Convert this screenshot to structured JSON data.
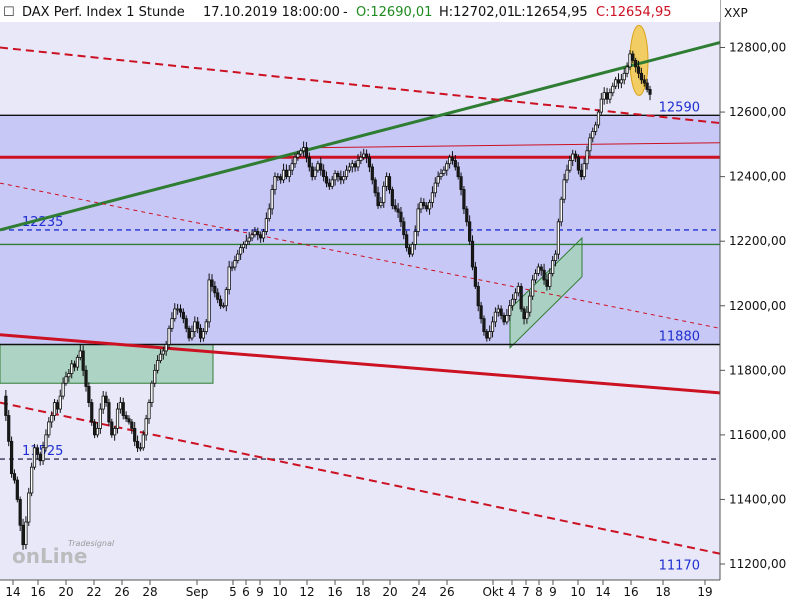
{
  "header": {
    "checkbox_glyph": "☐",
    "title": "DAX Perf. Index 1 Stunde",
    "datetime": "17.10.2019 18:00:00",
    "dash": "-",
    "open": "O:12690,01",
    "high": "H:12702,01",
    "low": "L:12654,95",
    "close": "C:12654,95"
  },
  "axis_unit": "XXP",
  "watermark": {
    "line1": "Tradesignal",
    "line2": "onLine"
  },
  "colors": {
    "background": "#e8e8f9",
    "band_fill": "#c8c8f6",
    "candle_up": "#ffffff",
    "candle_down": "#1a1a1a",
    "trend_green": "#2e7d32",
    "trend_red": "#cc1122",
    "blue_label": "#1f2fd1",
    "highlight": "#f4c430"
  },
  "chart_data": {
    "type": "candlestick",
    "title": "DAX Perf. Index 1 Stunde",
    "interval": "1h",
    "ylim": [
      11160,
      12920
    ],
    "x_ticks": [
      "14",
      "16",
      "20",
      "22",
      "26",
      "28",
      "Sep",
      "5",
      "6",
      "9",
      "10",
      "12",
      "16",
      "18",
      "20",
      "24",
      "26",
      "Okt",
      "4",
      "7",
      "8",
      "9",
      "10",
      "14",
      "16",
      "18",
      "19"
    ],
    "y_ticks": [
      "11200,00",
      "11400,00",
      "11600,00",
      "11800,00",
      "12000,00",
      "12200,00",
      "12400,00",
      "12600,00",
      "12800,00"
    ],
    "y_tick_values": [
      11200,
      11400,
      11600,
      11800,
      12000,
      12200,
      12400,
      12600,
      12800
    ],
    "close_path": [
      [
        1,
        11720
      ],
      [
        3,
        11660
      ],
      [
        4,
        11580
      ],
      [
        5,
        11480
      ],
      [
        6,
        11460
      ],
      [
        7,
        11400
      ],
      [
        8,
        11320
      ],
      [
        9,
        11260
      ],
      [
        10,
        11330
      ],
      [
        11,
        11420
      ],
      [
        12,
        11500
      ],
      [
        13,
        11560
      ],
      [
        14,
        11540
      ],
      [
        15,
        11520
      ],
      [
        16,
        11560
      ],
      [
        17,
        11600
      ],
      [
        18,
        11640
      ],
      [
        19,
        11660
      ],
      [
        20,
        11700
      ],
      [
        21,
        11680
      ],
      [
        22,
        11720
      ],
      [
        23,
        11760
      ],
      [
        24,
        11780
      ],
      [
        25,
        11790
      ],
      [
        26,
        11820
      ],
      [
        27,
        11810
      ],
      [
        28,
        11840
      ],
      [
        29,
        11860
      ],
      [
        30,
        11800
      ],
      [
        31,
        11750
      ],
      [
        32,
        11700
      ],
      [
        33,
        11640
      ],
      [
        34,
        11600
      ],
      [
        35,
        11620
      ],
      [
        36,
        11680
      ],
      [
        37,
        11720
      ],
      [
        38,
        11700
      ],
      [
        39,
        11640
      ],
      [
        40,
        11600
      ],
      [
        41,
        11620
      ],
      [
        42,
        11680
      ],
      [
        43,
        11700
      ],
      [
        44,
        11660
      ],
      [
        45,
        11650
      ],
      [
        46,
        11640
      ],
      [
        47,
        11620
      ],
      [
        48,
        11580
      ],
      [
        49,
        11560
      ],
      [
        50,
        11560
      ],
      [
        51,
        11600
      ],
      [
        52,
        11650
      ],
      [
        53,
        11700
      ],
      [
        54,
        11760
      ],
      [
        55,
        11800
      ],
      [
        56,
        11830
      ],
      [
        57,
        11850
      ],
      [
        58,
        11860
      ],
      [
        59,
        11880
      ],
      [
        60,
        11930
      ],
      [
        61,
        11960
      ],
      [
        62,
        11990
      ],
      [
        63,
        11990
      ],
      [
        64,
        11980
      ],
      [
        65,
        11960
      ],
      [
        66,
        11930
      ],
      [
        67,
        11900
      ],
      [
        68,
        11920
      ],
      [
        69,
        11950
      ],
      [
        70,
        11930
      ],
      [
        71,
        11900
      ],
      [
        72,
        11920
      ],
      [
        73,
        11950
      ],
      [
        74,
        12080
      ],
      [
        75,
        12060
      ],
      [
        76,
        12040
      ],
      [
        77,
        12020
      ],
      [
        78,
        12000
      ],
      [
        79,
        12000
      ],
      [
        80,
        12050
      ],
      [
        81,
        12120
      ],
      [
        82,
        12120
      ],
      [
        83,
        12140
      ],
      [
        84,
        12160
      ],
      [
        85,
        12180
      ],
      [
        86,
        12190
      ],
      [
        87,
        12200
      ],
      [
        88,
        12210
      ],
      [
        89,
        12220
      ],
      [
        90,
        12230
      ],
      [
        91,
        12220
      ],
      [
        92,
        12210
      ],
      [
        93,
        12230
      ],
      [
        94,
        12270
      ],
      [
        95,
        12300
      ],
      [
        96,
        12360
      ],
      [
        97,
        12400
      ],
      [
        98,
        12400
      ],
      [
        99,
        12390
      ],
      [
        100,
        12420
      ],
      [
        101,
        12400
      ],
      [
        102,
        12420
      ],
      [
        103,
        12440
      ],
      [
        104,
        12460
      ],
      [
        105,
        12470
      ],
      [
        106,
        12480
      ],
      [
        107,
        12490
      ],
      [
        108,
        12460
      ],
      [
        109,
        12430
      ],
      [
        110,
        12400
      ],
      [
        111,
        12420
      ],
      [
        112,
        12440
      ],
      [
        113,
        12420
      ],
      [
        114,
        12400
      ],
      [
        115,
        12380
      ],
      [
        116,
        12370
      ],
      [
        117,
        12390
      ],
      [
        118,
        12410
      ],
      [
        119,
        12400
      ],
      [
        120,
        12390
      ],
      [
        121,
        12400
      ],
      [
        122,
        12420
      ],
      [
        123,
        12430
      ],
      [
        124,
        12440
      ],
      [
        125,
        12430
      ],
      [
        126,
        12450
      ],
      [
        127,
        12460
      ],
      [
        128,
        12470
      ],
      [
        129,
        12460
      ],
      [
        130,
        12430
      ],
      [
        131,
        12390
      ],
      [
        132,
        12350
      ],
      [
        133,
        12310
      ],
      [
        134,
        12320
      ],
      [
        135,
        12370
      ],
      [
        136,
        12400
      ],
      [
        137,
        12360
      ],
      [
        138,
        12310
      ],
      [
        139,
        12300
      ],
      [
        140,
        12290
      ],
      [
        141,
        12260
      ],
      [
        142,
        12220
      ],
      [
        143,
        12180
      ],
      [
        144,
        12160
      ],
      [
        145,
        12190
      ],
      [
        146,
        12230
      ],
      [
        147,
        12300
      ],
      [
        148,
        12320
      ],
      [
        149,
        12310
      ],
      [
        150,
        12300
      ],
      [
        151,
        12320
      ],
      [
        152,
        12350
      ],
      [
        153,
        12380
      ],
      [
        154,
        12400
      ],
      [
        155,
        12410
      ],
      [
        156,
        12420
      ],
      [
        157,
        12440
      ],
      [
        158,
        12460
      ],
      [
        159,
        12450
      ],
      [
        160,
        12430
      ],
      [
        161,
        12400
      ],
      [
        162,
        12360
      ],
      [
        163,
        12300
      ],
      [
        164,
        12260
      ],
      [
        165,
        12200
      ],
      [
        166,
        12120
      ],
      [
        167,
        12060
      ],
      [
        168,
        12000
      ],
      [
        169,
        11960
      ],
      [
        170,
        11920
      ],
      [
        171,
        11900
      ],
      [
        172,
        11920
      ],
      [
        173,
        11950
      ],
      [
        174,
        11980
      ],
      [
        175,
        11990
      ],
      [
        176,
        11970
      ],
      [
        177,
        11950
      ],
      [
        178,
        11970
      ],
      [
        179,
        12000
      ],
      [
        180,
        12020
      ],
      [
        181,
        12040
      ],
      [
        182,
        12060
      ],
      [
        183,
        11990
      ],
      [
        184,
        11960
      ],
      [
        185,
        11980
      ],
      [
        186,
        12030
      ],
      [
        187,
        12080
      ],
      [
        188,
        12100
      ],
      [
        189,
        12120
      ],
      [
        190,
        12110
      ],
      [
        191,
        12080
      ],
      [
        192,
        12060
      ],
      [
        193,
        12100
      ],
      [
        194,
        12140
      ],
      [
        195,
        12160
      ],
      [
        196,
        12260
      ],
      [
        197,
        12330
      ],
      [
        198,
        12390
      ],
      [
        199,
        12420
      ],
      [
        200,
        12450
      ],
      [
        201,
        12470
      ],
      [
        202,
        12460
      ],
      [
        203,
        12420
      ],
      [
        204,
        12400
      ],
      [
        205,
        12440
      ],
      [
        206,
        12480
      ],
      [
        207,
        12520
      ],
      [
        208,
        12540
      ],
      [
        209,
        12560
      ],
      [
        210,
        12600
      ],
      [
        211,
        12640
      ],
      [
        212,
        12660
      ],
      [
        213,
        12640
      ],
      [
        214,
        12660
      ],
      [
        215,
        12680
      ],
      [
        216,
        12700
      ],
      [
        217,
        12690
      ],
      [
        218,
        12700
      ],
      [
        219,
        12720
      ],
      [
        220,
        12740
      ],
      [
        221,
        12780
      ],
      [
        222,
        12760
      ],
      [
        223,
        12740
      ],
      [
        224,
        12720
      ],
      [
        225,
        12700
      ],
      [
        226,
        12690
      ],
      [
        227,
        12670
      ],
      [
        228,
        12655
      ]
    ],
    "horizontal_levels": [
      {
        "value": 12590,
        "color": "#111111",
        "style": "solid",
        "label": "12590"
      },
      {
        "value": 12460,
        "color": "#cc1122",
        "style": "solid-thick"
      },
      {
        "value": 12235,
        "color": "#1f2fd1",
        "style": "dashed",
        "label": "12235"
      },
      {
        "value": 12190,
        "color": "#2e7d32",
        "style": "solid"
      },
      {
        "value": 11880,
        "color": "#111111",
        "style": "solid",
        "label": "11880"
      },
      {
        "value": 11525,
        "color": "#333355",
        "style": "dashed",
        "label": "11525"
      },
      {
        "value": 11170,
        "color": "#1f2fd1",
        "style": "label-only",
        "label": "11170"
      }
    ],
    "shaded_band": [
      11880,
      12590
    ],
    "trend_lines": [
      {
        "name": "green-uptrend",
        "from": [
          0,
          12235
        ],
        "to": [
          800,
          12880
        ],
        "color": "#2e7d32",
        "style": "solid"
      },
      {
        "name": "red-downtrend-upper",
        "from": [
          0,
          11910
        ],
        "to": [
          800,
          11710
        ],
        "color": "#cc1122",
        "style": "solid"
      },
      {
        "name": "red-dashed-top",
        "from": [
          0,
          12800
        ],
        "to": [
          800,
          12540
        ],
        "color": "#cc1122",
        "style": "dashed"
      },
      {
        "name": "red-dashed-mid",
        "from": [
          0,
          12380
        ],
        "to": [
          800,
          11880
        ],
        "color": "#cc1122",
        "style": "dashed-thin"
      },
      {
        "name": "red-dashed-bottom",
        "from": [
          0,
          11700
        ],
        "to": [
          800,
          11180
        ],
        "color": "#cc1122",
        "style": "dashed"
      }
    ],
    "annotations": [
      {
        "type": "box",
        "name": "consolidation-box",
        "x": [
          0,
          213
        ],
        "y": [
          11760,
          11880
        ],
        "fill": "#a6d0be"
      },
      {
        "type": "channel",
        "name": "rising-channel",
        "x": [
          510,
          582
        ],
        "y": [
          [
            11870,
            12090
          ],
          [
            11990,
            12210
          ]
        ],
        "fill": "#a6d0be"
      },
      {
        "type": "ellipse",
        "name": "top-highlight",
        "center": [
          639,
          12760
        ],
        "fill": "#f4c430"
      }
    ]
  }
}
